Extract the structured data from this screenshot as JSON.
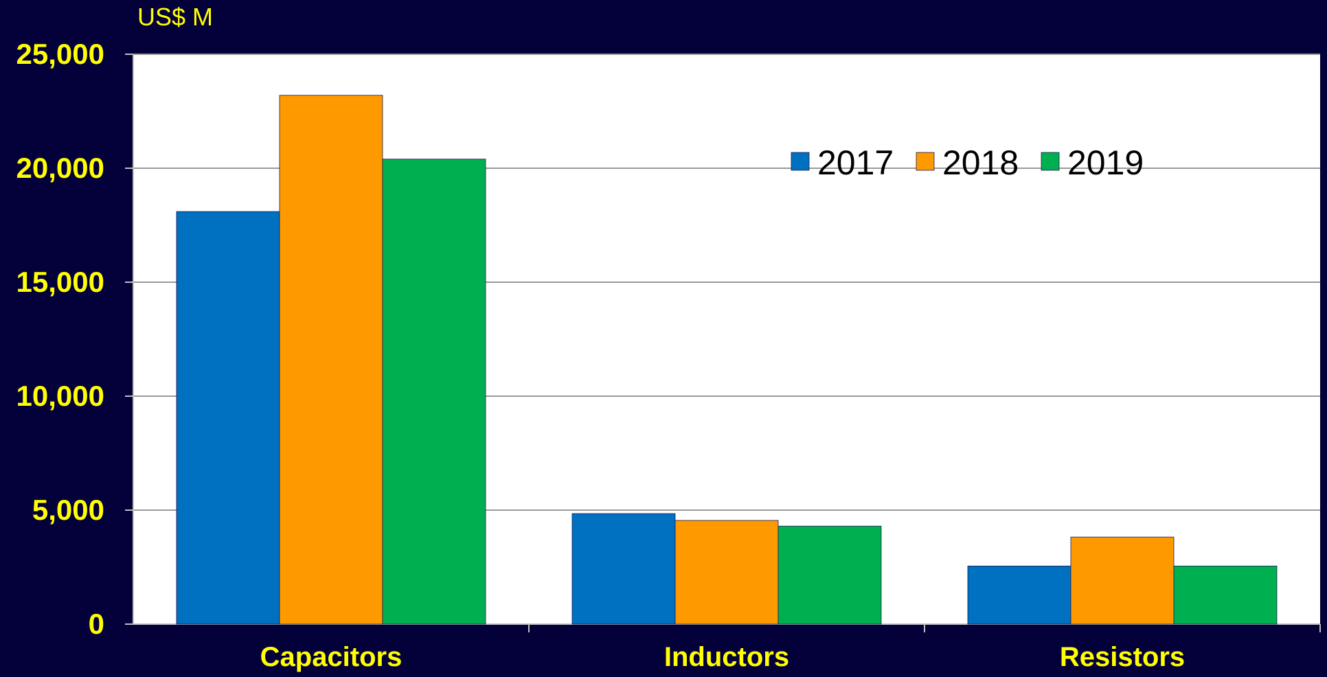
{
  "colors": {
    "background": "#04003a",
    "plot_area": "#ffffff",
    "gridline": "#9a9a9a",
    "axis_text": "#ffff00",
    "legend_text": "#000000"
  },
  "chart_data": {
    "type": "bar",
    "unit_label": "US$ M",
    "categories": [
      "Capacitors",
      "Inductors",
      "Resistors"
    ],
    "series": [
      {
        "name": "2017",
        "color": "#0070c0",
        "values": [
          18100,
          4850,
          2550
        ]
      },
      {
        "name": "2018",
        "color": "#ff9900",
        "values": [
          23200,
          4550,
          3820
        ]
      },
      {
        "name": "2019",
        "color": "#00b050",
        "values": [
          20400,
          4300,
          2550
        ]
      }
    ],
    "ylim": [
      0,
      25000
    ],
    "yticks": [
      0,
      5000,
      10000,
      15000,
      20000,
      25000
    ],
    "ytick_labels": [
      "0",
      "5,000",
      "10,000",
      "15,000",
      "20,000",
      "25,000"
    ],
    "grid": true,
    "legend_position": "top-right"
  }
}
